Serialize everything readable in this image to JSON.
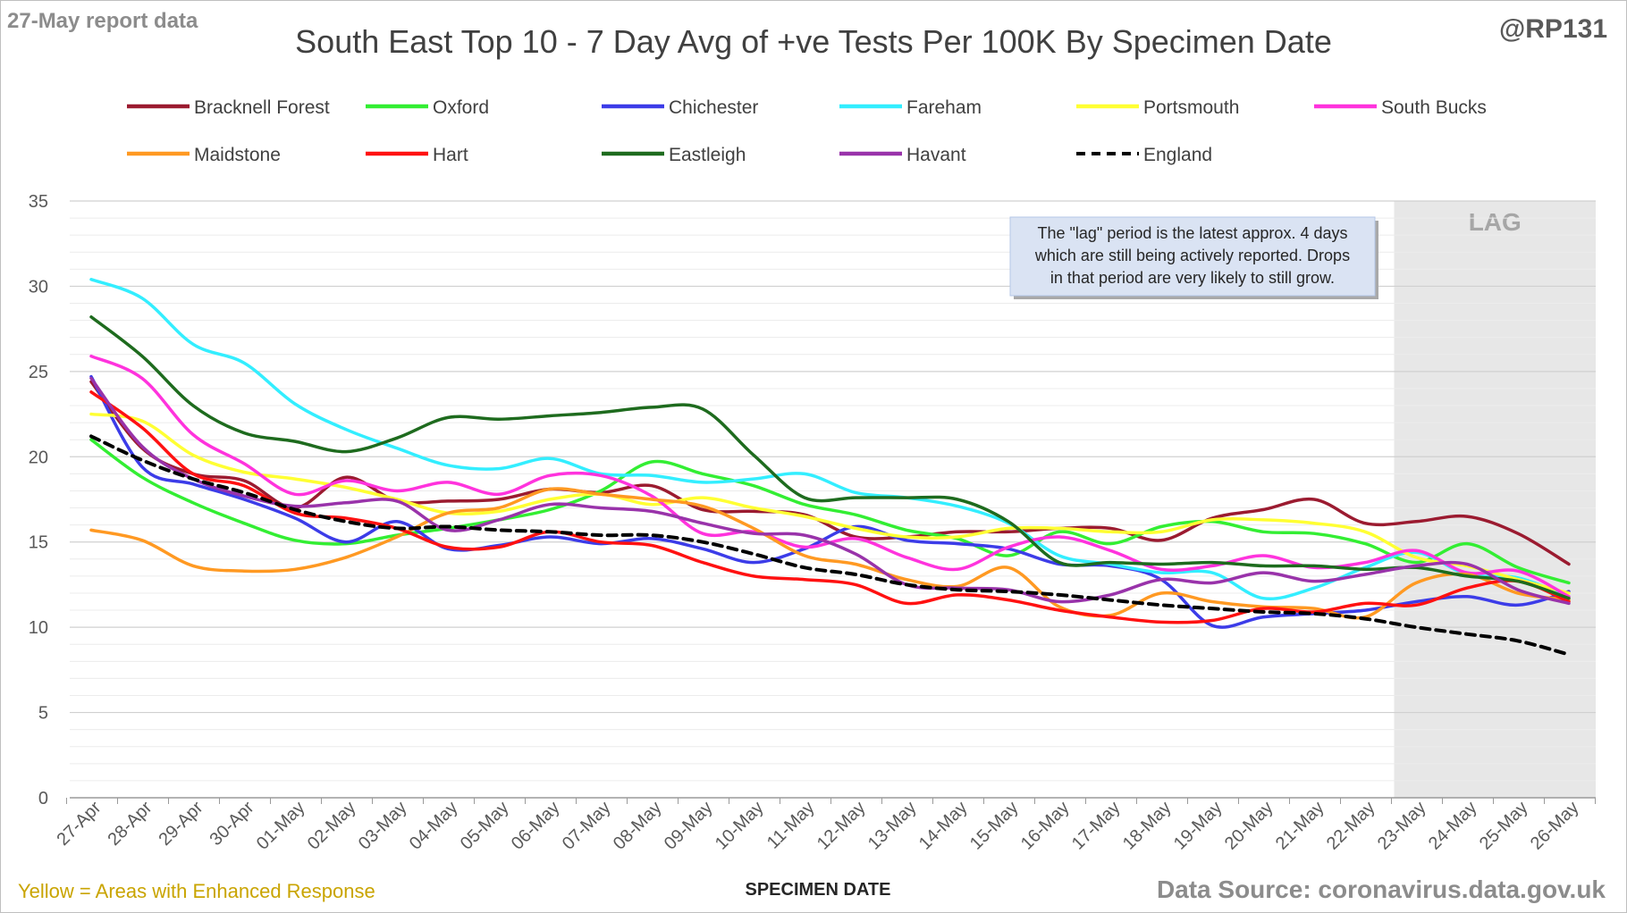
{
  "header": {
    "report_date": "27-May report data",
    "title": "South East Top 10 - 7 Day Avg of +ve Tests Per 100K By Specimen Date",
    "handle": "@RP131"
  },
  "footer": {
    "note": "Yellow = Areas with Enhanced Response",
    "source": "Data Source: coronavirus.data.gov.uk"
  },
  "chart_data": {
    "type": "line",
    "title": "South East Top 10 - 7 Day Avg of +ve Tests Per 100K By Specimen Date",
    "xlabel": "SPECIMEN DATE",
    "ylabel": "",
    "ylim": [
      0,
      35
    ],
    "yticks": [
      0,
      5,
      10,
      15,
      20,
      25,
      30,
      35
    ],
    "grid": true,
    "legend_position": "top",
    "x": [
      "27-Apr",
      "28-Apr",
      "29-Apr",
      "30-Apr",
      "01-May",
      "02-May",
      "03-May",
      "04-May",
      "05-May",
      "06-May",
      "07-May",
      "08-May",
      "09-May",
      "10-May",
      "11-May",
      "12-May",
      "13-May",
      "14-May",
      "15-May",
      "16-May",
      "17-May",
      "18-May",
      "19-May",
      "20-May",
      "21-May",
      "22-May",
      "23-May",
      "24-May",
      "25-May",
      "26-May"
    ],
    "lag": {
      "label": "LAG",
      "from": "23-May",
      "to": "26-May"
    },
    "annotation": {
      "lines": [
        "The \"lag\" period is the latest approx. 4 days",
        "which are still being actively reported.  Drops",
        "in that period are very likely to still grow."
      ]
    },
    "series": [
      {
        "name": "Bracknell Forest",
        "color": "#9b1b30",
        "dashed": false,
        "values": [
          24.4,
          20.5,
          19.0,
          18.6,
          17.0,
          18.8,
          17.4,
          17.4,
          17.5,
          18.1,
          17.9,
          18.3,
          16.9,
          16.8,
          16.6,
          15.3,
          15.3,
          15.6,
          15.6,
          15.8,
          15.8,
          15.1,
          16.4,
          16.9,
          17.5,
          16.1,
          16.2,
          16.5,
          15.5,
          13.7
        ]
      },
      {
        "name": "Oxford",
        "color": "#33ee33",
        "dashed": false,
        "values": [
          21.0,
          18.8,
          17.3,
          16.1,
          15.1,
          14.9,
          15.4,
          15.8,
          16.3,
          16.9,
          18.0,
          19.7,
          19.0,
          18.3,
          17.2,
          16.6,
          15.7,
          15.2,
          14.2,
          15.6,
          14.9,
          15.9,
          16.2,
          15.6,
          15.5,
          14.9,
          13.8,
          14.9,
          13.5,
          12.6
        ]
      },
      {
        "name": "Chichester",
        "color": "#3c3ce8",
        "dashed": false,
        "values": [
          24.7,
          19.4,
          18.4,
          17.5,
          16.4,
          15.0,
          16.2,
          14.6,
          14.8,
          15.3,
          14.9,
          15.2,
          14.6,
          13.8,
          14.6,
          15.9,
          15.1,
          14.9,
          14.6,
          13.7,
          13.6,
          12.8,
          10.1,
          10.6,
          10.8,
          11.0,
          11.5,
          11.8,
          11.3,
          12.1
        ]
      },
      {
        "name": "Fareham",
        "color": "#33eeff",
        "dashed": false,
        "values": [
          30.4,
          29.3,
          26.6,
          25.5,
          23.1,
          21.6,
          20.5,
          19.5,
          19.3,
          19.9,
          19.0,
          18.9,
          18.5,
          18.7,
          19.0,
          17.9,
          17.6,
          17.1,
          16.1,
          14.2,
          13.7,
          13.2,
          13.2,
          11.7,
          12.3,
          13.5,
          14.4,
          13.1,
          12.9,
          11.8
        ]
      },
      {
        "name": "Portsmouth",
        "color": "#ffff33",
        "dashed": false,
        "values": [
          22.5,
          22.1,
          20.1,
          19.1,
          18.7,
          18.2,
          17.5,
          16.7,
          16.8,
          17.5,
          17.8,
          17.2,
          17.6,
          17.0,
          16.5,
          15.8,
          15.3,
          15.3,
          15.8,
          15.8,
          15.6,
          15.6,
          16.3,
          16.3,
          16.1,
          15.6,
          14.1,
          13.6,
          12.8,
          12.0
        ]
      },
      {
        "name": "South Bucks",
        "color": "#ff33dd",
        "dashed": false,
        "values": [
          25.9,
          24.6,
          21.3,
          19.6,
          17.8,
          18.6,
          18.0,
          18.5,
          17.8,
          18.9,
          18.9,
          17.7,
          15.5,
          15.6,
          14.7,
          15.2,
          14.1,
          13.4,
          14.7,
          15.3,
          14.5,
          13.4,
          13.6,
          14.2,
          13.5,
          13.8,
          14.5,
          13.2,
          13.3,
          11.8
        ]
      },
      {
        "name": "Maidstone",
        "color": "#ff9922",
        "dashed": false,
        "values": [
          15.7,
          15.1,
          13.6,
          13.3,
          13.4,
          14.1,
          15.3,
          16.7,
          17.0,
          18.1,
          17.8,
          17.5,
          17.1,
          15.8,
          14.2,
          13.7,
          12.8,
          12.4,
          13.5,
          11.2,
          10.7,
          12.0,
          11.5,
          11.2,
          11.1,
          10.6,
          12.6,
          13.1,
          12.0,
          11.6
        ]
      },
      {
        "name": "Hart",
        "color": "#ff1111",
        "dashed": false,
        "values": [
          23.8,
          21.7,
          19.0,
          18.3,
          16.7,
          16.4,
          15.8,
          14.7,
          14.7,
          15.6,
          15.0,
          14.8,
          13.8,
          13.0,
          12.8,
          12.5,
          11.4,
          11.9,
          11.6,
          11.0,
          10.6,
          10.3,
          10.4,
          11.1,
          10.9,
          11.4,
          11.3,
          12.3,
          12.7,
          11.5
        ]
      },
      {
        "name": "Eastleigh",
        "color": "#1e6b1e",
        "dashed": false,
        "values": [
          28.2,
          25.9,
          23.0,
          21.4,
          20.9,
          20.3,
          21.1,
          22.3,
          22.2,
          22.4,
          22.6,
          22.9,
          22.8,
          20.1,
          17.6,
          17.6,
          17.6,
          17.5,
          16.2,
          13.8,
          13.8,
          13.7,
          13.8,
          13.6,
          13.6,
          13.4,
          13.5,
          13.0,
          12.7,
          11.7
        ]
      },
      {
        "name": "Havant",
        "color": "#9933aa",
        "dashed": false,
        "values": [
          24.6,
          20.6,
          18.7,
          17.7,
          17.1,
          17.3,
          17.4,
          15.7,
          16.3,
          17.2,
          17.0,
          16.8,
          16.1,
          15.5,
          15.4,
          14.3,
          12.5,
          12.3,
          12.2,
          11.5,
          11.9,
          12.8,
          12.6,
          13.2,
          12.7,
          13.1,
          13.6,
          13.7,
          12.2,
          11.4
        ]
      },
      {
        "name": "England",
        "color": "#000000",
        "dashed": true,
        "values": [
          21.2,
          19.8,
          18.7,
          17.9,
          16.9,
          16.2,
          15.8,
          15.9,
          15.7,
          15.6,
          15.4,
          15.4,
          15.0,
          14.3,
          13.5,
          13.1,
          12.5,
          12.2,
          12.1,
          11.9,
          11.6,
          11.3,
          11.1,
          10.9,
          10.8,
          10.5,
          10.0,
          9.6,
          9.2,
          8.4
        ]
      }
    ]
  }
}
